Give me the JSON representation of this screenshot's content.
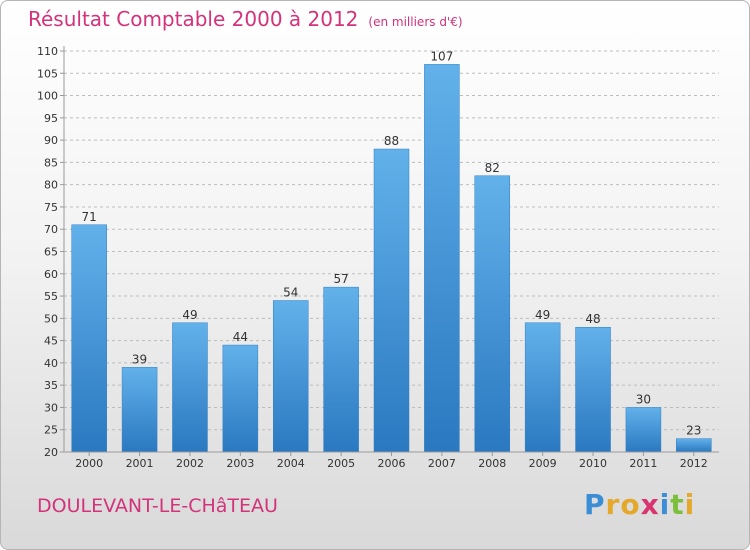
{
  "header": {
    "title": "Résultat Comptable 2000 à 2012",
    "subtitle": "(en milliers d'€)"
  },
  "footer": {
    "town": "DOULEVANT-LE-CHâTEAU",
    "brand": [
      "P",
      "r",
      "o",
      "x",
      "i",
      "t",
      "i"
    ]
  },
  "colors": {
    "bar": "#3b8fd6",
    "bar_top": "#63b1ea",
    "bar_bottom": "#2a78c0",
    "text_accent": "#d4327a",
    "axis": "#9a9a9a",
    "grid": "#bdbdbd"
  },
  "chart_data": {
    "type": "bar",
    "title": "Résultat Comptable 2000 à 2012",
    "subtitle": "(en milliers d'€)",
    "categories": [
      "2000",
      "2001",
      "2002",
      "2003",
      "2004",
      "2005",
      "2006",
      "2007",
      "2008",
      "2009",
      "2010",
      "2011",
      "2012"
    ],
    "values": [
      71,
      39,
      49,
      44,
      54,
      57,
      88,
      107,
      82,
      49,
      48,
      30,
      23
    ],
    "ylim": [
      20,
      110
    ],
    "yticks": [
      20,
      25,
      30,
      35,
      40,
      45,
      50,
      55,
      60,
      65,
      70,
      75,
      80,
      85,
      90,
      95,
      100,
      105,
      110
    ],
    "xlabel": "",
    "ylabel": "",
    "grid": "dashed-horizontal",
    "data_labels": true
  }
}
